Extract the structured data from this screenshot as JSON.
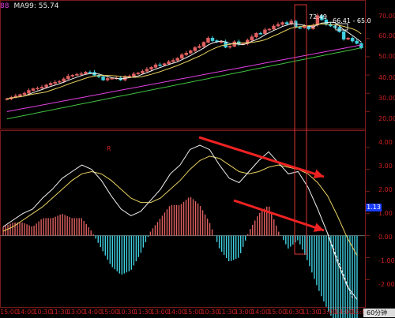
{
  "legend": {
    "ma_a": "88",
    "ma_b": "MA99: 55.74"
  },
  "price_labels": {
    "high": "72.49",
    "right": "66.41 - 65.0"
  },
  "r_mark": "R",
  "period_label": "60分钟",
  "macd_value_marker": "1.13",
  "colors": {
    "background": "#000000",
    "bull": "#e06060",
    "bear": "#40d0e0",
    "ma_short": "#f0f0f0",
    "ma_mid": "#e8d060",
    "ma_long": "#e040e0",
    "ma_99": "#40c040",
    "dif": "#f0f0f0",
    "dea": "#e8d060",
    "arrow": "#ee2222",
    "grid": "#7a1a1a"
  },
  "chart_data": [
    {
      "type": "candlestick",
      "title": "",
      "y_ticks": [
        "70.00",
        "60.00",
        "50.00",
        "40.00",
        "30.00",
        "20.00"
      ],
      "ylim": [
        12,
        75
      ],
      "x_ticks": [
        "15:00",
        "14:00",
        "10:30",
        "11:30",
        "13:00",
        "14:00",
        "15:00",
        "10:30",
        "11:30",
        "13:00",
        "14:00",
        "15:00",
        "10:30",
        "11:30",
        "13:00",
        "14:00",
        "15:00",
        "10:30",
        "11:30",
        "13:00",
        "14:00",
        "15:00"
      ],
      "x_labels": [
        "15:00",
        "14:00",
        "10:30",
        "11:30",
        "13:00",
        "14:00",
        "15:00",
        "10:30",
        "11:30",
        "13:00",
        "14:00",
        "15:00",
        "10:30",
        "11:30",
        "13:00",
        "14:00",
        "15:00",
        "10:30",
        "11:30",
        "13:00",
        "14:00",
        "15:00"
      ],
      "close": [
        27.0,
        27.8,
        28.6,
        29.3,
        30.1,
        31.6,
        32.5,
        32.8,
        33.4,
        34.6,
        35.5,
        36.1,
        36.6,
        37.9,
        39.4,
        39.9,
        40.4,
        40.7,
        41.6,
        41.5,
        39.9,
        39.1,
        37.3,
        38.1,
        38.2,
        38.4,
        37.3,
        39.3,
        39.4,
        40.6,
        41.1,
        42.1,
        43.2,
        44.2,
        45.6,
        45.4,
        46.2,
        47.3,
        48.0,
        49.2,
        51.1,
        52.0,
        53.3,
        55.0,
        55.7,
        57.9,
        60.2,
        58.8,
        58.1,
        58.2,
        55.2,
        55.7,
        58.2,
        56.8,
        57.1,
        59.1,
        60.9,
        62.8,
        62.6,
        64.7,
        65.1,
        66.8,
        67.7,
        68.7,
        68.0,
        69.5,
        66.0,
        65.9,
        66.6,
        65.3,
        67.3,
        72.5,
        70.2,
        67.7,
        66.8,
        66.0,
        63.7,
        59.6,
        60.2,
        58.6,
        57.3,
        54.9
      ],
      "ma_lines": [
        "white",
        "yellow",
        "magenta",
        "green"
      ],
      "annotations": [
        "72.49",
        "66.41 - 65.0"
      ]
    },
    {
      "type": "macd",
      "y_ticks": [
        "4.00",
        "3.00",
        "2.00",
        "1.00",
        "0.00",
        "-1.00",
        "-2.00"
      ],
      "ylim": [
        -3.2,
        4.6
      ],
      "series": [
        {
          "name": "DIF",
          "values": [
            0.4,
            0.7,
            1.0,
            1.2,
            1.7,
            2.1,
            2.6,
            2.9,
            3.2,
            3.0,
            2.5,
            1.8,
            1.2,
            0.9,
            1.1,
            1.6,
            2.1,
            2.8,
            3.2,
            3.9,
            4.1,
            3.9,
            3.2,
            2.6,
            2.4,
            2.9,
            3.4,
            3.8,
            3.3,
            2.8,
            2.9,
            2.2,
            1.2,
            0.1,
            -1.2,
            -2.3,
            -2.9
          ]
        },
        {
          "name": "DEA",
          "values": [
            0.2,
            0.4,
            0.7,
            1.0,
            1.3,
            1.7,
            2.1,
            2.5,
            2.8,
            2.9,
            2.8,
            2.5,
            2.1,
            1.7,
            1.5,
            1.5,
            1.7,
            2.1,
            2.5,
            3.0,
            3.4,
            3.6,
            3.5,
            3.2,
            2.9,
            2.8,
            2.9,
            3.1,
            3.2,
            3.1,
            3.0,
            2.8,
            2.4,
            1.8,
            0.9,
            -0.1,
            -0.9
          ]
        }
      ]
    }
  ]
}
